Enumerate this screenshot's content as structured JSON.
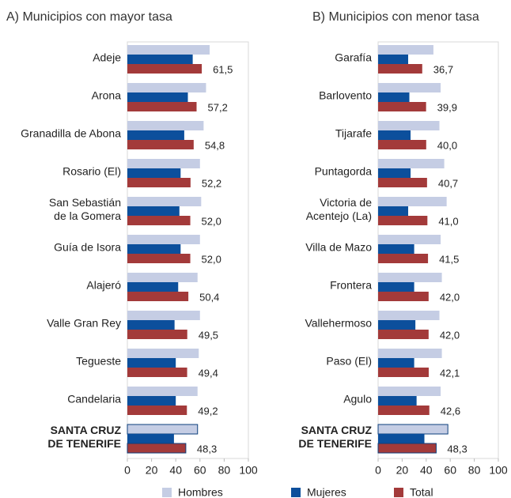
{
  "chart_data": [
    {
      "type": "bar",
      "orientation": "horizontal",
      "title": "A) Municipios con mayor tasa",
      "categories": [
        "Adeje",
        "Arona",
        "Granadilla de Abona",
        "Rosario (El)",
        "San Sebastián\nde la Gomera",
        "Guía de Isora",
        "Alajeró",
        "Valle Gran Rey",
        "Tegueste",
        "Candelaria",
        "SANTA CRUZ\nDE TENERIFE"
      ],
      "series": [
        {
          "name": "Hombres",
          "color": "#c5cde4",
          "values": [
            68,
            65,
            63,
            60,
            61,
            60,
            58,
            60,
            59,
            58,
            58
          ]
        },
        {
          "name": "Mujeres",
          "color": "#0c4f9c",
          "values": [
            54,
            50,
            47,
            44,
            43,
            44,
            42,
            39,
            40,
            40,
            38.5
          ]
        },
        {
          "name": "Total",
          "color": "#a33a3a",
          "values": [
            61.5,
            57.2,
            54.8,
            52.2,
            52.0,
            52.0,
            50.4,
            49.5,
            49.4,
            49.2,
            48.3
          ],
          "value_labels": [
            "61,5",
            "57,2",
            "54,8",
            "52,2",
            "52,0",
            "52,0",
            "50,4",
            "49,5",
            "49,4",
            "49,2",
            "48,3"
          ]
        }
      ],
      "xlim": [
        0,
        100
      ],
      "xticks": [
        0,
        20,
        40,
        60,
        80,
        100
      ],
      "grid": false
    },
    {
      "type": "bar",
      "orientation": "horizontal",
      "title": "B) Municipios con menor tasa",
      "categories": [
        "Garafía",
        "Barlovento",
        "Tijarafe",
        "Puntagorda",
        "Victoria de\nAcentejo (La)",
        "Villa de Mazo",
        "Frontera",
        "Vallehermoso",
        "Paso (El)",
        "Agulo",
        "SANTA CRUZ\nDE TENERIFE"
      ],
      "series": [
        {
          "name": "Hombres",
          "color": "#c5cde4",
          "values": [
            46,
            52,
            51,
            55,
            57,
            52,
            53,
            51,
            53,
            52,
            58
          ]
        },
        {
          "name": "Mujeres",
          "color": "#0c4f9c",
          "values": [
            25,
            26,
            27,
            27,
            25,
            30,
            30,
            31,
            30,
            32,
            38.5
          ]
        },
        {
          "name": "Total",
          "color": "#a33a3a",
          "values": [
            36.7,
            39.9,
            40.0,
            40.7,
            41.0,
            41.5,
            42.0,
            42.0,
            42.1,
            42.6,
            48.3
          ],
          "value_labels": [
            "36,7",
            "39,9",
            "40,0",
            "40,7",
            "41,0",
            "41,5",
            "42,0",
            "42,0",
            "42,1",
            "42,6",
            "48,3"
          ]
        }
      ],
      "xlim": [
        0,
        100
      ],
      "xticks": [
        0,
        20,
        40,
        60,
        80,
        100
      ],
      "grid": false
    }
  ]
}
